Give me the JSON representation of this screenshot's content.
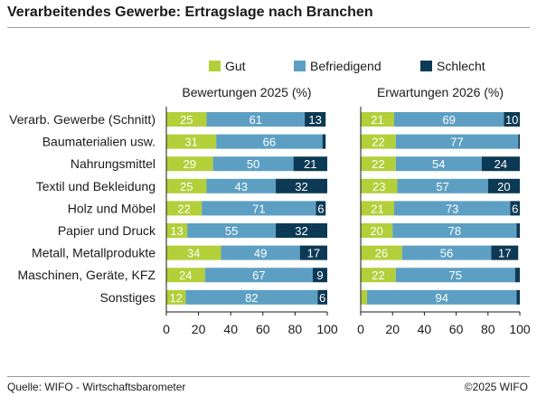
{
  "title": "Verarbeitendes Gewerbe: Ertragslage nach Branchen",
  "source": "Quelle: WIFO - Wirtschaftsbarometer",
  "copyright": "©2025 WIFO",
  "colors": {
    "gut": "#b3cf3a",
    "befriedigend": "#5d9fc3",
    "schlecht": "#0c3a54"
  },
  "chart_data": {
    "type": "bar",
    "orientation": "horizontal",
    "stacked": true,
    "categories": [
      "Verarb. Gewerbe (Schnitt)",
      "Baumaterialien usw.",
      "Nahrungsmittel",
      "Textil und Bekleidung",
      "Holz und Möbel",
      "Papier und Druck",
      "Metall, Metallprodukte",
      "Maschinen, Geräte, KFZ",
      "Sonstiges"
    ],
    "legend": [
      "Gut",
      "Befriedigend",
      "Schlecht"
    ],
    "legend_position": "top",
    "xlim": [
      0,
      100
    ],
    "xticks": [
      "0",
      "20",
      "40",
      "60",
      "80",
      "100"
    ],
    "panels": [
      {
        "title": "Bewertungen 2025 (%)",
        "series": [
          {
            "name": "Gut",
            "values": [
              25,
              31,
              29,
              25,
              22,
              13,
              34,
              24,
              12
            ]
          },
          {
            "name": "Befriedigend",
            "values": [
              61,
              66,
              50,
              43,
              71,
              55,
              49,
              67,
              82
            ]
          },
          {
            "name": "Schlecht",
            "values": [
              13,
              2,
              21,
              32,
              6,
              32,
              17,
              9,
              6
            ]
          }
        ],
        "labels": [
          [
            "25",
            "61",
            "13"
          ],
          [
            "31",
            "66",
            ""
          ],
          [
            "29",
            "50",
            "21"
          ],
          [
            "25",
            "43",
            "32"
          ],
          [
            "22",
            "71",
            "6"
          ],
          [
            "13",
            "55",
            "32"
          ],
          [
            "34",
            "49",
            "17"
          ],
          [
            "24",
            "67",
            "9"
          ],
          [
            "12",
            "82",
            "6"
          ]
        ]
      },
      {
        "title": "Erwartungen 2026 (%)",
        "series": [
          {
            "name": "Gut",
            "values": [
              21,
              22,
              22,
              23,
              21,
              20,
              26,
              22,
              4
            ]
          },
          {
            "name": "Befriedigend",
            "values": [
              69,
              77,
              54,
              57,
              73,
              78,
              56,
              75,
              94
            ]
          },
          {
            "name": "Schlecht",
            "values": [
              10,
              1,
              24,
              20,
              6,
              2,
              17,
              3,
              2
            ]
          }
        ],
        "labels": [
          [
            "21",
            "69",
            "10"
          ],
          [
            "22",
            "77",
            ""
          ],
          [
            "22",
            "54",
            "24"
          ],
          [
            "23",
            "57",
            "20"
          ],
          [
            "21",
            "73",
            "6"
          ],
          [
            "20",
            "78",
            ""
          ],
          [
            "26",
            "56",
            "17"
          ],
          [
            "22",
            "75",
            ""
          ],
          [
            "",
            "94",
            ""
          ]
        ]
      }
    ]
  }
}
